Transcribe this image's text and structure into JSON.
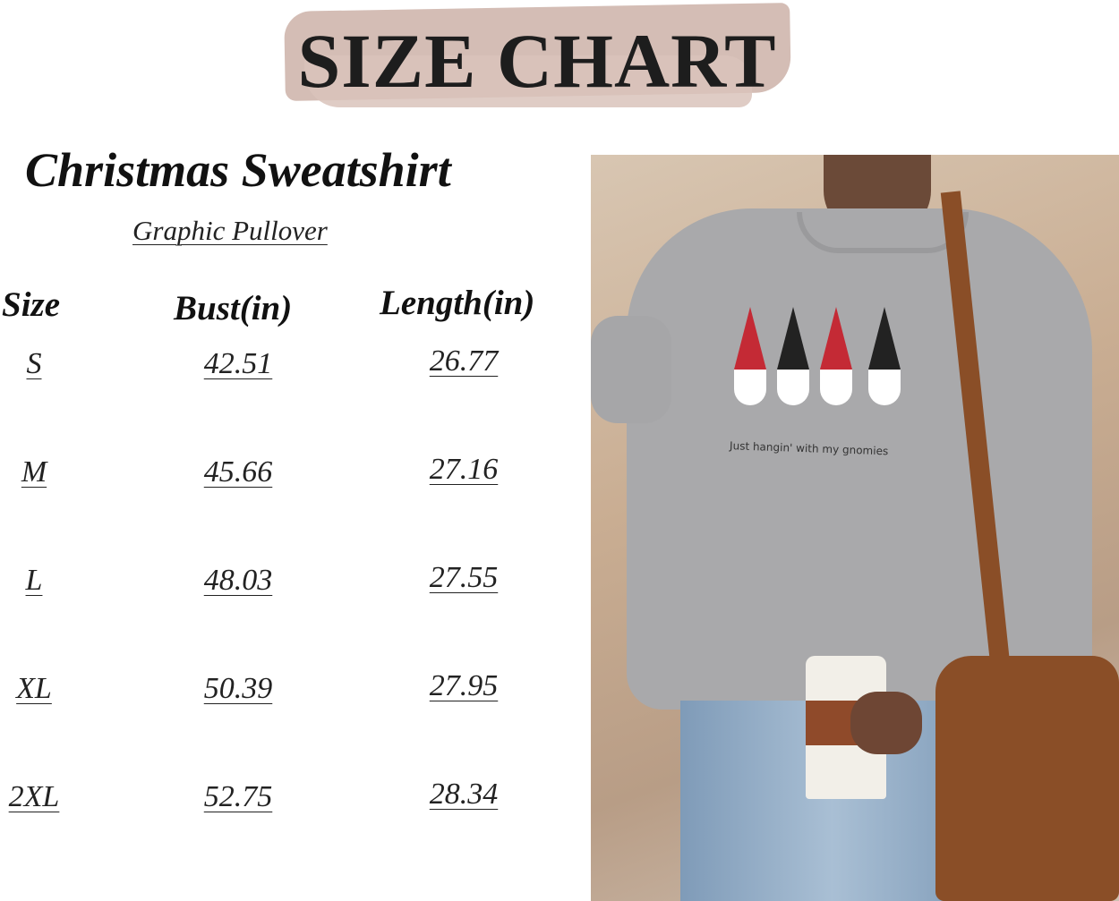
{
  "header": {
    "title": "SIZE CHART",
    "product": "Christmas Sweatshirt",
    "subtitle": "Graphic Pullover"
  },
  "table": {
    "columns": [
      "Size",
      "Bust(in)",
      "Length(in)"
    ],
    "rows": [
      {
        "size": "S",
        "bust": "42.51",
        "length": "26.77"
      },
      {
        "size": "M",
        "bust": "45.66",
        "length": "27.16"
      },
      {
        "size": "L",
        "bust": "48.03",
        "length": "27.55"
      },
      {
        "size": "XL",
        "bust": "50.39",
        "length": "27.95"
      },
      {
        "size": "2XL",
        "bust": "52.75",
        "length": "28.34"
      }
    ]
  },
  "photo": {
    "print_text": "Just hangin' with my gnomies"
  },
  "colors": {
    "brush": "#cfb6ad",
    "sweatshirt": "#a9a9ab",
    "bag": "#8a4e27"
  }
}
